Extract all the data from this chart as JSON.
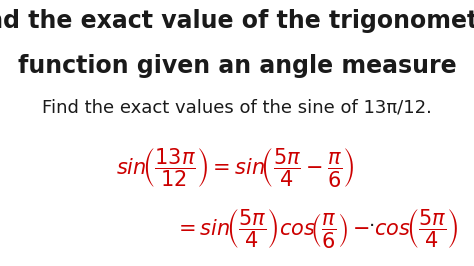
{
  "bg_color": "#ffffff",
  "title_line1": "Find the exact value of the trigonometric",
  "title_line2": "function given an angle measure",
  "subtitle": "Find the exact values of the sine of 13π/12.",
  "title_fontsize": 17,
  "subtitle_fontsize": 13,
  "math_color": "#cc0000",
  "text_color": "#1a1a1a",
  "math_fontsize": 15
}
